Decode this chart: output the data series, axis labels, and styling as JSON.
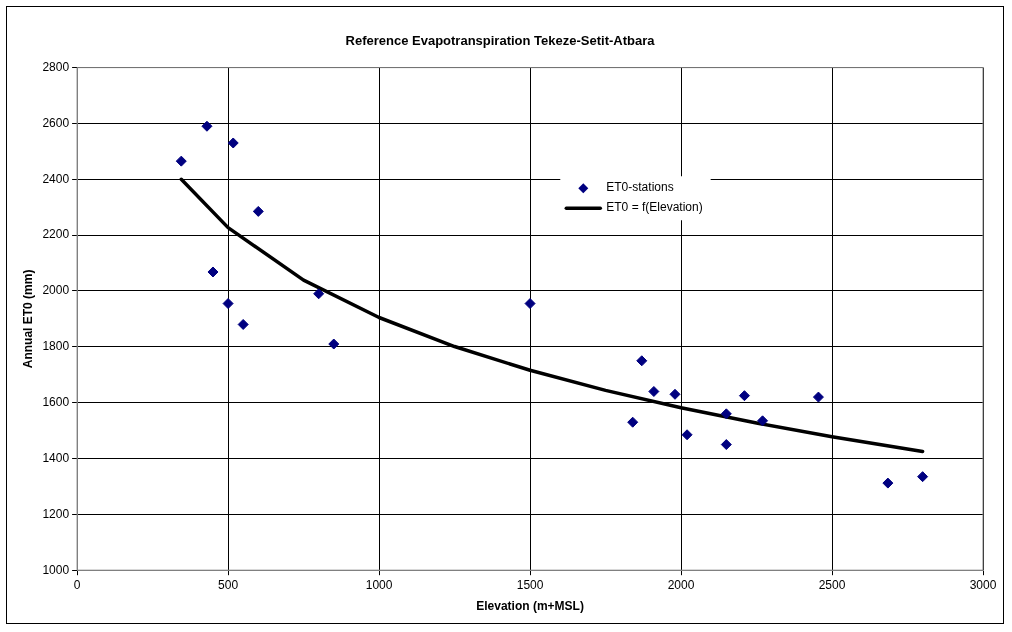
{
  "chart_data": {
    "type": "scatter",
    "title": "Reference Evapotranspiration Tekeze-Setit-Atbara",
    "xlabel": "Elevation (m+MSL)",
    "ylabel": "Annual ET0 (mm)",
    "xlim": [
      0,
      3000
    ],
    "xticks": [
      0,
      500,
      1000,
      1500,
      2000,
      2500,
      3000
    ],
    "ylim": [
      1000,
      2800
    ],
    "yticks": [
      1000,
      1200,
      1400,
      1600,
      1800,
      2000,
      2200,
      2400,
      2600,
      2800
    ],
    "grid": true,
    "legend": "top right",
    "marker": "diamond",
    "series": [
      {
        "name": "ET0-stations",
        "type": "scatter",
        "color": "#000080",
        "x": [
          345,
          430,
          517,
          450,
          500,
          550,
          600,
          800,
          850,
          1500,
          1840,
          1870,
          1910,
          1980,
          2020,
          2150,
          2150,
          2210,
          2270,
          2455,
          2685,
          2800
        ],
        "values": [
          2465,
          2590,
          2530,
          2068,
          1955,
          1880,
          2285,
          1990,
          1810,
          1955,
          1530,
          1750,
          1640,
          1630,
          1485,
          1560,
          1450,
          1625,
          1535,
          1620,
          1312,
          1335
        ]
      },
      {
        "name": "ET0 = f(Elevation)",
        "type": "line",
        "color": "#000000",
        "line_style": "solid",
        "marker": "none",
        "x": [
          345,
          500,
          750,
          1000,
          1250,
          1500,
          1750,
          2000,
          2250,
          2500,
          2800
        ],
        "values": [
          2400,
          2227,
          2039,
          1905,
          1801,
          1716,
          1644,
          1582,
          1527,
          1478,
          1425
        ]
      }
    ]
  }
}
